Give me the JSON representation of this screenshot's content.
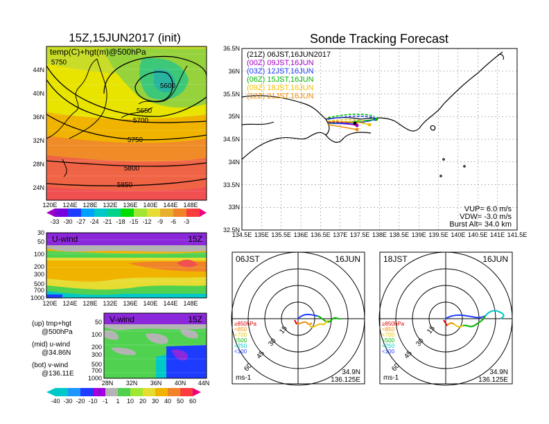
{
  "main_title": "Sonde Tracking Forecast",
  "init_title": "15Z,15JUN2017 (init)",
  "temp_panel": {
    "label": "temp(C)+hgt(m)@500hPa",
    "lat_ticks": [
      "44N",
      "40N",
      "36N",
      "32N",
      "28N",
      "24N"
    ],
    "lon_ticks": [
      "120E",
      "124E",
      "128E",
      "132E",
      "136E",
      "140E",
      "144E",
      "148E"
    ],
    "contours": [
      "5600",
      "5650",
      "5700",
      "5750",
      "5750",
      "5800",
      "5850"
    ],
    "colorbar_labels": [
      "-33",
      "-30",
      "-27",
      "-24",
      "-21",
      "-18",
      "-15",
      "-12",
      "-9",
      "-6",
      "-3"
    ]
  },
  "uwind_panel": {
    "label": "U-wind",
    "time": "15Z",
    "p_ticks": [
      "30",
      "50",
      "100",
      "200",
      "300",
      "500",
      "700",
      "1000"
    ],
    "lon_ticks": [
      "120E",
      "124E",
      "128E",
      "132E",
      "136E",
      "140E",
      "144E",
      "148E"
    ]
  },
  "vwind_panel": {
    "label": "V-wind",
    "time": "15Z",
    "p_ticks": [
      "50",
      "100",
      "200",
      "300",
      "500",
      "700",
      "1000"
    ],
    "lat_ticks": [
      "28N",
      "32N",
      "36N",
      "40N",
      "44N"
    ],
    "colorbar_labels": [
      "-40",
      "-30",
      "-20",
      "-10",
      "-1",
      "1",
      "10",
      "20",
      "30",
      "40",
      "50",
      "60"
    ]
  },
  "legend_notes": [
    {
      "head": "(up) tmp+hgt",
      "sub": "@500hPa"
    },
    {
      "head": "(mid) u-wind",
      "sub": "@34.86N"
    },
    {
      "head": "(bot) v-wind",
      "sub": "@136.11E"
    }
  ],
  "tracking": {
    "lat_ticks": [
      "36.5N",
      "36N",
      "35.5N",
      "35N",
      "34.5N",
      "34N",
      "33.5N",
      "33N",
      "32.5N"
    ],
    "lon_ticks": [
      "134.5E",
      "135E",
      "135.5E",
      "136E",
      "136.5E",
      "137E",
      "137.5E",
      "138E",
      "138.5E",
      "139E",
      "139.5E",
      "140E",
      "140.5E",
      "141E",
      "141.5E"
    ],
    "launches": [
      {
        "label": "(21Z)  06JST,16JUN2017",
        "color": "#000000"
      },
      {
        "label": "(00Z)  09JST,16JUN",
        "color": "#a000c0"
      },
      {
        "label": "(03Z)  12JST,16JUN",
        "color": "#1e3cff"
      },
      {
        "label": "(06Z)  15JST,16JUN",
        "color": "#00b400"
      },
      {
        "label": "(09Z)  18JST,16JUN",
        "color": "#f0c000"
      },
      {
        "label": "(12Z)  21JST,16JUN",
        "color": "#f08c00"
      }
    ],
    "params": [
      "VUP=  6.0 m/s",
      "VDW= -3.0 m/s",
      "Burst Alt= 34.0 km"
    ]
  },
  "hodo_left": {
    "time": "06JST",
    "date": "16JUN",
    "rings": [
      "15",
      "30",
      "45",
      "60"
    ],
    "levels": [
      "≥850hPa",
      "<850",
      "<700",
      "<500",
      "<250",
      "<100"
    ],
    "level_colors": [
      "#e00000",
      "#f08c00",
      "#e8c800",
      "#00b400",
      "#00c8c8",
      "#1e3cff"
    ],
    "unit": "ms-1",
    "lat": "34.9N",
    "lon": "136.125E"
  },
  "hodo_right": {
    "time": "18JST",
    "date": "16JUN",
    "rings": [
      "15",
      "30",
      "45",
      "60"
    ],
    "levels": [
      "≥850hPa",
      "<850",
      "<700",
      "<500",
      "<250",
      "<100"
    ],
    "level_colors": [
      "#e00000",
      "#f08c00",
      "#e8c800",
      "#00b400",
      "#00c8c8",
      "#1e3cff"
    ],
    "unit": "ms-1",
    "lat": "34.9N",
    "lon": "136.125E"
  }
}
